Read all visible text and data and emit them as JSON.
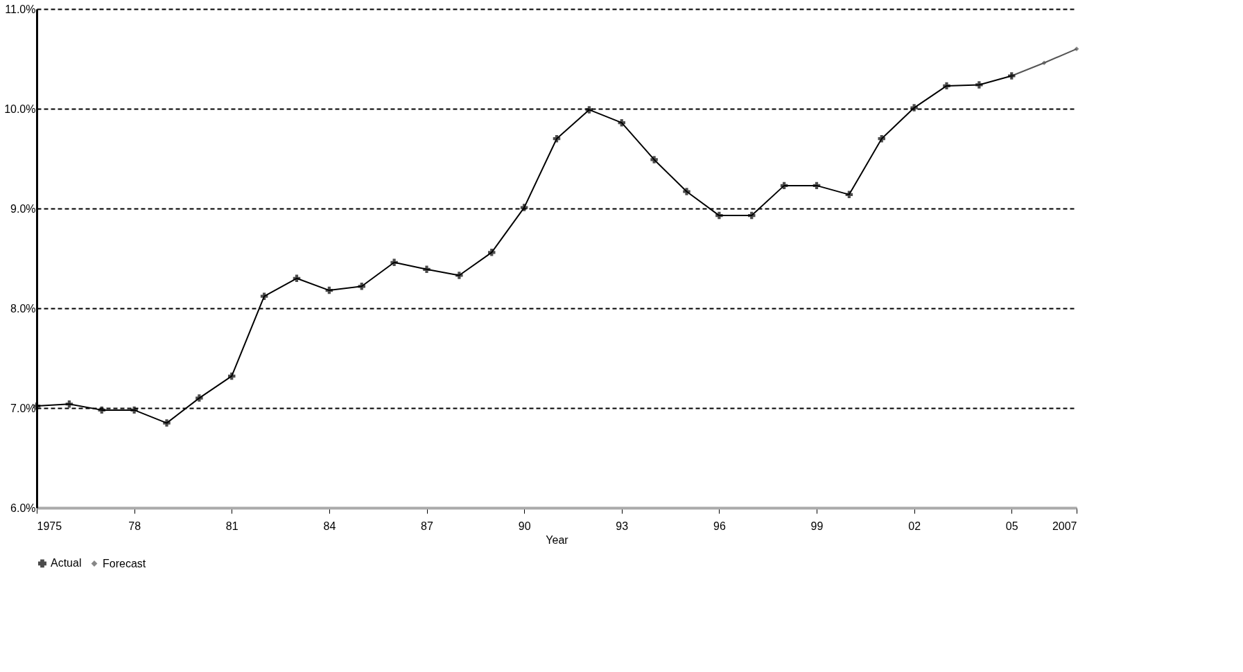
{
  "chart_data": {
    "type": "line",
    "xlabel": "Year",
    "xlim": [
      1975,
      2007
    ],
    "xticks": [
      {
        "value": 1975,
        "label": "1975"
      },
      {
        "value": 1978,
        "label": "78"
      },
      {
        "value": 1981,
        "label": "81"
      },
      {
        "value": 1984,
        "label": "84"
      },
      {
        "value": 1987,
        "label": "87"
      },
      {
        "value": 1990,
        "label": "90"
      },
      {
        "value": 1993,
        "label": "93"
      },
      {
        "value": 1996,
        "label": "96"
      },
      {
        "value": 1999,
        "label": "99"
      },
      {
        "value": 2002,
        "label": "02"
      },
      {
        "value": 2005,
        "label": "05"
      },
      {
        "value": 2007,
        "label": "2007"
      }
    ],
    "ylim": [
      6,
      11
    ],
    "yticks": [
      {
        "value": 6,
        "label": "6.0%"
      },
      {
        "value": 7,
        "label": "7.0%"
      },
      {
        "value": 8,
        "label": "8.0%"
      },
      {
        "value": 9,
        "label": "9.0%"
      },
      {
        "value": 10,
        "label": "10.0%"
      },
      {
        "value": 11,
        "label": "11.0%"
      }
    ],
    "grid": "y",
    "line_style": "solid",
    "legend": "bottom",
    "series": [
      {
        "name": "Actual",
        "color": "#000000",
        "marker": "cross",
        "x": [
          1975,
          1976,
          1977,
          1978,
          1979,
          1980,
          1981,
          1982,
          1983,
          1984,
          1985,
          1986,
          1987,
          1988,
          1989,
          1990,
          1991,
          1992,
          1993,
          1994,
          1995,
          1996,
          1997,
          1998,
          1999,
          2000,
          2001,
          2002,
          2003,
          2004,
          2005
        ],
        "values": [
          7.02,
          7.04,
          6.98,
          6.98,
          6.85,
          7.1,
          7.32,
          8.12,
          8.3,
          8.18,
          8.22,
          8.46,
          8.39,
          8.33,
          8.56,
          9.01,
          9.7,
          9.99,
          9.86,
          9.49,
          9.17,
          8.93,
          8.93,
          9.23,
          9.23,
          9.14,
          9.7,
          10.01,
          10.23,
          10.24,
          10.33
        ]
      },
      {
        "name": "Forecast",
        "color": "#555555",
        "marker": "diamond",
        "x": [
          2005,
          2006,
          2007
        ],
        "values": [
          10.33,
          10.46,
          10.6
        ]
      }
    ]
  }
}
